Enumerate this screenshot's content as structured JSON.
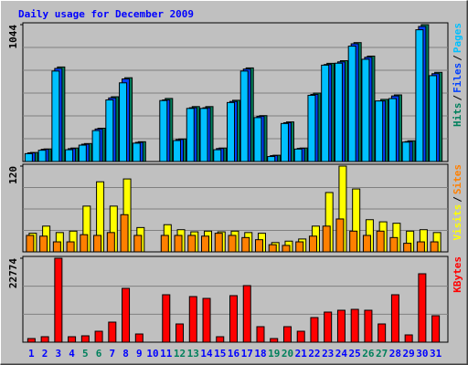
{
  "legend_separator": "/",
  "x_label_color": "#0000ff",
  "highlight_color": "#00805c",
  "highlighted_category_indices": [
    4,
    5,
    11,
    12,
    18,
    19,
    25,
    26
  ],
  "chart_data": [
    {
      "type": "bar",
      "title": "Daily usage for December 2009",
      "categories": [
        "1",
        "2",
        "3",
        "4",
        "5",
        "6",
        "7",
        "8",
        "9",
        "10",
        "11",
        "12",
        "13",
        "14",
        "15",
        "16",
        "17",
        "18",
        "19",
        "20",
        "21",
        "22",
        "23",
        "24",
        "25",
        "26",
        "27",
        "28",
        "29",
        "30",
        "31"
      ],
      "series": [
        {
          "name": "Pages",
          "color": "#00c0ff",
          "values": [
            60,
            86,
            690,
            90,
            125,
            236,
            470,
            600,
            140,
            0,
            465,
            160,
            405,
            405,
            90,
            450,
            690,
            335,
            38,
            290,
            95,
            505,
            735,
            750,
            880,
            780,
            462,
            480,
            148,
            1005,
            655
          ]
        },
        {
          "name": "Files",
          "color": "#0040ff",
          "values": [
            66,
            93,
            710,
            98,
            132,
            248,
            485,
            630,
            146,
            0,
            470,
            168,
            410,
            410,
            99,
            458,
            705,
            345,
            45,
            296,
            100,
            512,
            740,
            760,
            898,
            795,
            462,
            500,
            152,
            1030,
            670
          ]
        },
        {
          "name": "Hits",
          "color": "#00805c",
          "values": [
            69,
            96,
            721,
            103,
            137,
            254,
            494,
            639,
            151,
            0,
            481,
            172,
            419,
            419,
            103,
            467,
            714,
            350,
            48,
            302,
            103,
            522,
            749,
            769,
            907,
            804,
            474,
            508,
            158,
            1044,
            680
          ]
        }
      ],
      "ylim": [
        0,
        1044
      ],
      "yticks": [
        1044
      ],
      "gridlines": [
        174,
        348,
        522,
        696,
        870
      ]
    },
    {
      "type": "bar",
      "series": [
        {
          "name": "Sites",
          "color": "#ff8000",
          "values": [
            23,
            22,
            14,
            14,
            24,
            23,
            27,
            52,
            23,
            0,
            23,
            23,
            23,
            22,
            26,
            23,
            20,
            17,
            10,
            9,
            14,
            22,
            36,
            46,
            29,
            23,
            29,
            20,
            12,
            14,
            14
          ]
        },
        {
          "name": "Visits",
          "color": "#ffff00",
          "values": [
            26,
            36,
            27,
            29,
            64,
            98,
            64,
            102,
            34,
            0,
            38,
            31,
            28,
            29,
            28,
            29,
            27,
            26,
            13,
            15,
            18,
            36,
            83,
            120,
            88,
            45,
            42,
            40,
            29,
            31,
            27
          ]
        }
      ],
      "ylim": [
        0,
        120
      ],
      "yticks": [
        120
      ],
      "gridlines": [
        30,
        60,
        90
      ]
    },
    {
      "type": "bar",
      "series": [
        {
          "name": "KBytes",
          "color": "#ff0000",
          "values": [
            990,
            1485,
            22774,
            1485,
            1733,
            2970,
            5446,
            14604,
            2228,
            0,
            12871,
            4950,
            12376,
            11881,
            1485,
            12624,
            15347,
            4208,
            990,
            4208,
            2970,
            6683,
            8168,
            8663,
            8911,
            8663,
            4950,
            12871,
            1980,
            18566,
            7178
          ]
        }
      ],
      "ylim": [
        0,
        22774
      ],
      "yticks": [
        22774
      ],
      "gridlines": [
        7591,
        15183
      ]
    }
  ]
}
